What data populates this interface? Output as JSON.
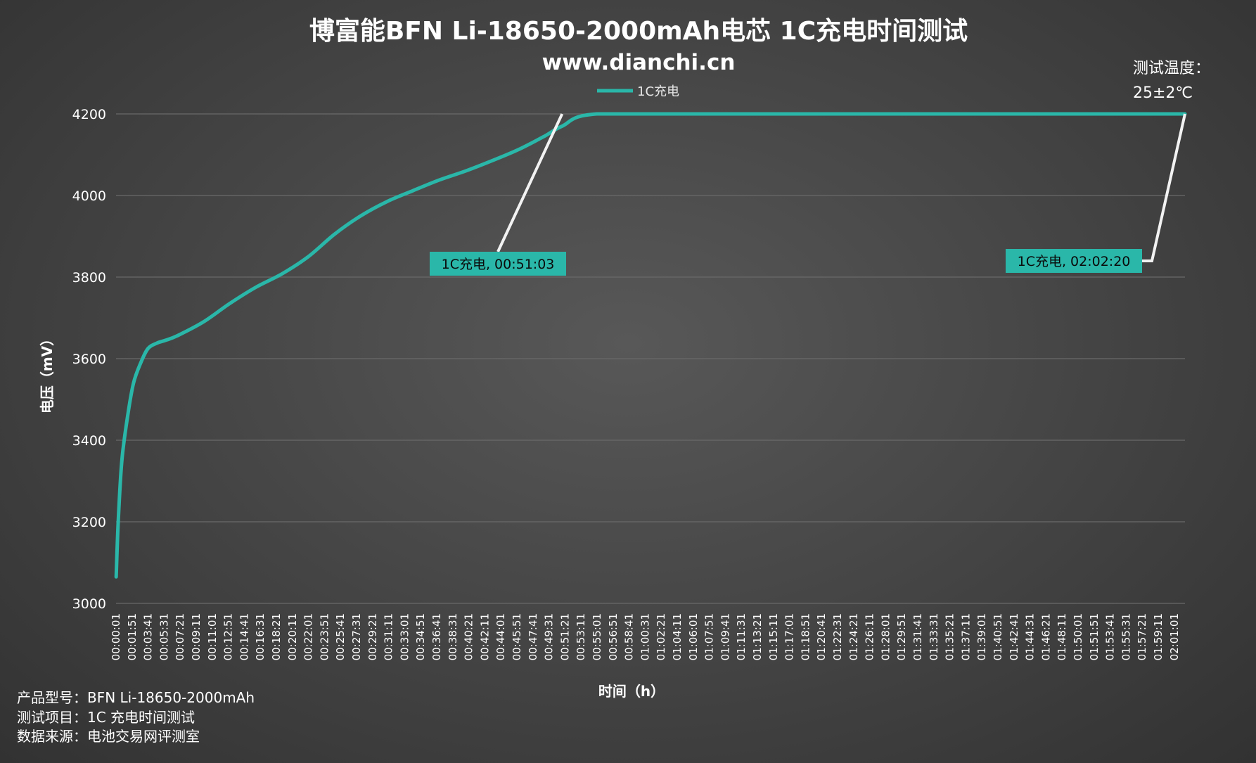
{
  "chart_data": {
    "type": "line",
    "title": "博富能BFN Li-18650-2000mAh电芯 1C充电时间测试",
    "subtitle": "www.dianchi.cn",
    "xlabel": "时间（h）",
    "ylabel": "电压（mV）",
    "ylim": [
      3000,
      4200
    ],
    "yticks": [
      3000,
      3200,
      3400,
      3600,
      3800,
      4000,
      4200
    ],
    "grid": true,
    "legend_position": "top-center",
    "xticks": [
      "00:00:01",
      "00:01:51",
      "00:03:41",
      "00:05:31",
      "00:07:21",
      "00:09:11",
      "00:11:01",
      "00:12:51",
      "00:14:41",
      "00:16:31",
      "00:18:21",
      "00:20:11",
      "00:22:01",
      "00:23:51",
      "00:25:41",
      "00:27:31",
      "00:29:21",
      "00:31:11",
      "00:33:01",
      "00:34:51",
      "00:36:41",
      "00:38:31",
      "00:40:21",
      "00:42:11",
      "00:44:01",
      "00:45:51",
      "00:47:41",
      "00:49:31",
      "00:51:21",
      "00:53:11",
      "00:55:01",
      "00:56:51",
      "00:58:41",
      "01:00:31",
      "01:02:21",
      "01:04:11",
      "01:06:01",
      "01:07:51",
      "01:09:41",
      "01:11:31",
      "01:13:21",
      "01:15:11",
      "01:17:01",
      "01:18:51",
      "01:20:41",
      "01:22:31",
      "01:24:21",
      "01:26:11",
      "01:28:01",
      "01:29:51",
      "01:31:41",
      "01:33:31",
      "01:35:21",
      "01:37:11",
      "01:39:01",
      "01:40:51",
      "01:42:41",
      "01:44:31",
      "01:46:21",
      "01:48:11",
      "01:50:01",
      "01:51:51",
      "01:53:41",
      "01:55:31",
      "01:57:21",
      "01:59:11",
      "02:01:01"
    ],
    "series": [
      {
        "name": "1C充电",
        "color": "#2ab7a9",
        "x_seconds": [
          1,
          15,
          40,
          80,
          120,
          170,
          220,
          280,
          340,
          420,
          600,
          780,
          960,
          1140,
          1320,
          1500,
          1680,
          1860,
          2040,
          2220,
          2400,
          2580,
          2760,
          2940,
          3063,
          3300,
          4200,
          5400,
          6600,
          7340
        ],
        "values": [
          3065,
          3200,
          3350,
          3460,
          3540,
          3590,
          3625,
          3638,
          3645,
          3656,
          3690,
          3735,
          3775,
          3808,
          3850,
          3905,
          3950,
          3985,
          4012,
          4038,
          4060,
          4085,
          4112,
          4145,
          4170,
          4200,
          4200,
          4200,
          4200,
          4200
        ]
      }
    ],
    "annotations": [
      {
        "text": "1C充电, 00:51:03",
        "x_seconds": 3063,
        "y": 4200
      },
      {
        "text": "1C充电, 02:02:20",
        "x_seconds": 7340,
        "y": 4200
      }
    ]
  },
  "legend": {
    "label": "1C充电"
  },
  "temperature": {
    "line1": "测试温度：",
    "line2": "25±2℃"
  },
  "footer": {
    "line1": "产品型号：BFN Li-18650-2000mAh",
    "line2": "测试项目：1C 充电时间测试",
    "line3": "数据来源：电池交易网评测室"
  },
  "colors": {
    "series": "#2ab7a9",
    "grid": "#6a6a6a",
    "leader": "#f2f2f2",
    "text": "#ffffff"
  }
}
